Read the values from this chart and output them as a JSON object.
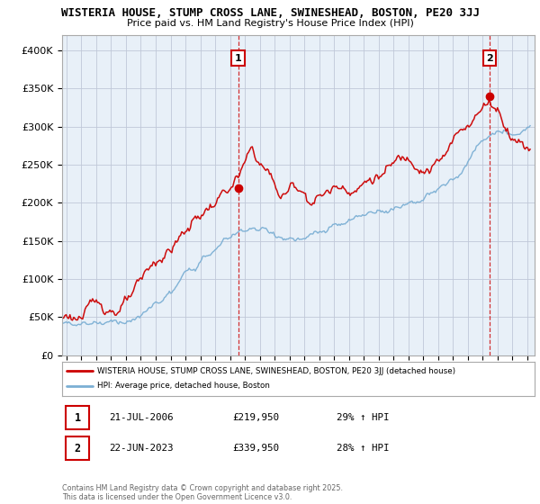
{
  "title_line1": "WISTERIA HOUSE, STUMP CROSS LANE, SWINESHEAD, BOSTON, PE20 3JJ",
  "title_line2": "Price paid vs. HM Land Registry's House Price Index (HPI)",
  "ylabel_ticks": [
    "£0",
    "£50K",
    "£100K",
    "£150K",
    "£200K",
    "£250K",
    "£300K",
    "£350K",
    "£400K"
  ],
  "ytick_values": [
    0,
    50000,
    100000,
    150000,
    200000,
    250000,
    300000,
    350000,
    400000
  ],
  "ylim": [
    0,
    420000
  ],
  "xlim_start": 1994.7,
  "xlim_end": 2026.5,
  "red_color": "#cc0000",
  "blue_color": "#7bafd4",
  "chart_bg_color": "#e8f0f8",
  "marker1_x": 2006.55,
  "marker1_y": 219950,
  "marker2_x": 2023.47,
  "marker2_y": 339950,
  "legend_red_label": "WISTERIA HOUSE, STUMP CROSS LANE, SWINESHEAD, BOSTON, PE20 3JJ (detached house)",
  "legend_blue_label": "HPI: Average price, detached house, Boston",
  "table_row1": [
    "1",
    "21-JUL-2006",
    "£219,950",
    "29% ↑ HPI"
  ],
  "table_row2": [
    "2",
    "22-JUN-2023",
    "£339,950",
    "28% ↑ HPI"
  ],
  "footer": "Contains HM Land Registry data © Crown copyright and database right 2025.\nThis data is licensed under the Open Government Licence v3.0.",
  "background_color": "#ffffff",
  "grid_color": "#c0c8d8"
}
